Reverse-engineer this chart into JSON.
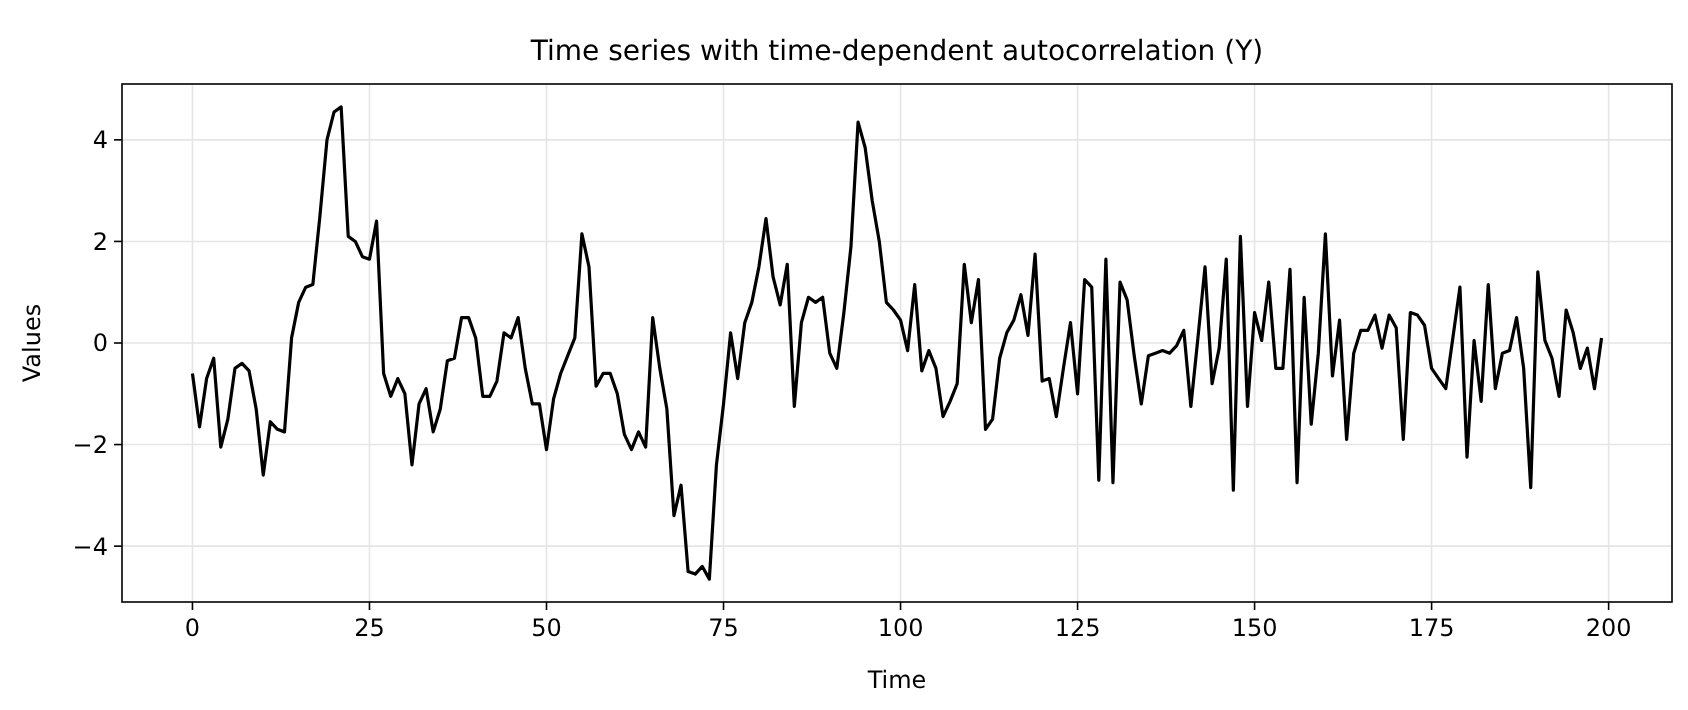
{
  "chart_data": {
    "type": "line",
    "title": "Time series with time-dependent autocorrelation (Y)",
    "xlabel": "Time",
    "ylabel": "Values",
    "x": [
      0,
      1,
      2,
      3,
      4,
      5,
      6,
      7,
      8,
      9,
      10,
      11,
      12,
      13,
      14,
      15,
      16,
      17,
      18,
      19,
      20,
      21,
      22,
      23,
      24,
      25,
      26,
      27,
      28,
      29,
      30,
      31,
      32,
      33,
      34,
      35,
      36,
      37,
      38,
      39,
      40,
      41,
      42,
      43,
      44,
      45,
      46,
      47,
      48,
      49,
      50,
      51,
      52,
      53,
      54,
      55,
      56,
      57,
      58,
      59,
      60,
      61,
      62,
      63,
      64,
      65,
      66,
      67,
      68,
      69,
      70,
      71,
      72,
      73,
      74,
      75,
      76,
      77,
      78,
      79,
      80,
      81,
      82,
      83,
      84,
      85,
      86,
      87,
      88,
      89,
      90,
      91,
      92,
      93,
      94,
      95,
      96,
      97,
      98,
      99,
      100,
      101,
      102,
      103,
      104,
      105,
      106,
      107,
      108,
      109,
      110,
      111,
      112,
      113,
      114,
      115,
      116,
      117,
      118,
      119,
      120,
      121,
      122,
      123,
      124,
      125,
      126,
      127,
      128,
      129,
      130,
      131,
      132,
      133,
      134,
      135,
      136,
      137,
      138,
      139,
      140,
      141,
      142,
      143,
      144,
      145,
      146,
      147,
      148,
      149,
      150,
      151,
      152,
      153,
      154,
      155,
      156,
      157,
      158,
      159,
      160,
      161,
      162,
      163,
      164,
      165,
      166,
      167,
      168,
      169,
      170,
      171,
      172,
      173,
      174,
      175,
      176,
      177,
      178,
      179,
      180,
      181,
      182,
      183,
      184,
      185,
      186,
      187,
      188,
      189,
      190,
      191,
      192,
      193,
      194,
      195,
      196,
      197,
      198,
      199
    ],
    "series": [
      {
        "color": "#000000",
        "values": [
          -0.6,
          -1.65,
          -0.7,
          -0.3,
          -2.05,
          -1.5,
          -0.5,
          -0.4,
          -0.55,
          -1.3,
          -2.6,
          -1.55,
          -1.7,
          -1.75,
          0.1,
          0.8,
          1.1,
          1.15,
          2.5,
          4.0,
          4.55,
          4.65,
          2.1,
          2.0,
          1.7,
          1.65,
          2.4,
          -0.6,
          -1.05,
          -0.7,
          -1.0,
          -2.4,
          -1.2,
          -0.9,
          -1.75,
          -1.3,
          -0.35,
          -0.3,
          0.5,
          0.5,
          0.1,
          -1.05,
          -1.05,
          -0.75,
          0.2,
          0.1,
          0.5,
          -0.5,
          -1.2,
          -1.2,
          -2.1,
          -1.1,
          -0.6,
          -0.25,
          0.1,
          2.15,
          1.5,
          -0.85,
          -0.6,
          -0.6,
          -1.0,
          -1.8,
          -2.1,
          -1.75,
          -2.05,
          0.5,
          -0.5,
          -1.3,
          -3.4,
          -2.8,
          -4.5,
          -4.55,
          -4.4,
          -4.65,
          -2.4,
          -1.2,
          0.2,
          -0.7,
          0.4,
          0.8,
          1.5,
          2.45,
          1.3,
          0.75,
          1.55,
          -1.25,
          0.4,
          0.9,
          0.8,
          0.9,
          -0.2,
          -0.5,
          0.6,
          1.9,
          4.35,
          3.85,
          2.8,
          2.0,
          0.8,
          0.65,
          0.45,
          -0.15,
          1.15,
          -0.55,
          -0.15,
          -0.5,
          -1.45,
          -1.15,
          -0.8,
          1.55,
          0.4,
          1.25,
          -1.7,
          -1.5,
          -0.3,
          0.2,
          0.45,
          0.95,
          0.15,
          1.75,
          -0.75,
          -0.7,
          -1.45,
          -0.5,
          0.4,
          -1.0,
          1.25,
          1.1,
          -2.7,
          1.65,
          -2.75,
          1.2,
          0.85,
          -0.25,
          -1.2,
          -0.25,
          -0.2,
          -0.15,
          -0.2,
          -0.05,
          0.25,
          -1.25,
          0.1,
          1.5,
          -0.8,
          -0.1,
          1.65,
          -2.9,
          2.1,
          -1.25,
          0.6,
          0.05,
          1.2,
          -0.5,
          -0.5,
          1.45,
          -2.75,
          0.9,
          -1.6,
          -0.2,
          2.15,
          -0.65,
          0.45,
          -1.9,
          -0.2,
          0.25,
          0.25,
          0.55,
          -0.1,
          0.55,
          0.3,
          -1.9,
          0.6,
          0.55,
          0.35,
          -0.5,
          -0.7,
          -0.9,
          0.1,
          1.1,
          -2.25,
          0.05,
          -1.15,
          1.15,
          -0.9,
          -0.2,
          -0.15,
          0.5,
          -0.5,
          -2.85,
          1.4,
          0.05,
          -0.3,
          -1.05,
          0.65,
          0.2,
          -0.5,
          -0.1,
          -0.9,
          0.1
        ]
      }
    ],
    "xlim": [
      -9.95,
      208.95
    ],
    "ylim": [
      -5.1,
      5.1
    ],
    "xticks": [
      0,
      25,
      50,
      75,
      100,
      125,
      150,
      175,
      200
    ],
    "yticks": [
      -4,
      -2,
      0,
      2,
      4
    ],
    "grid": true,
    "line_style": "solid",
    "marker": "none"
  }
}
